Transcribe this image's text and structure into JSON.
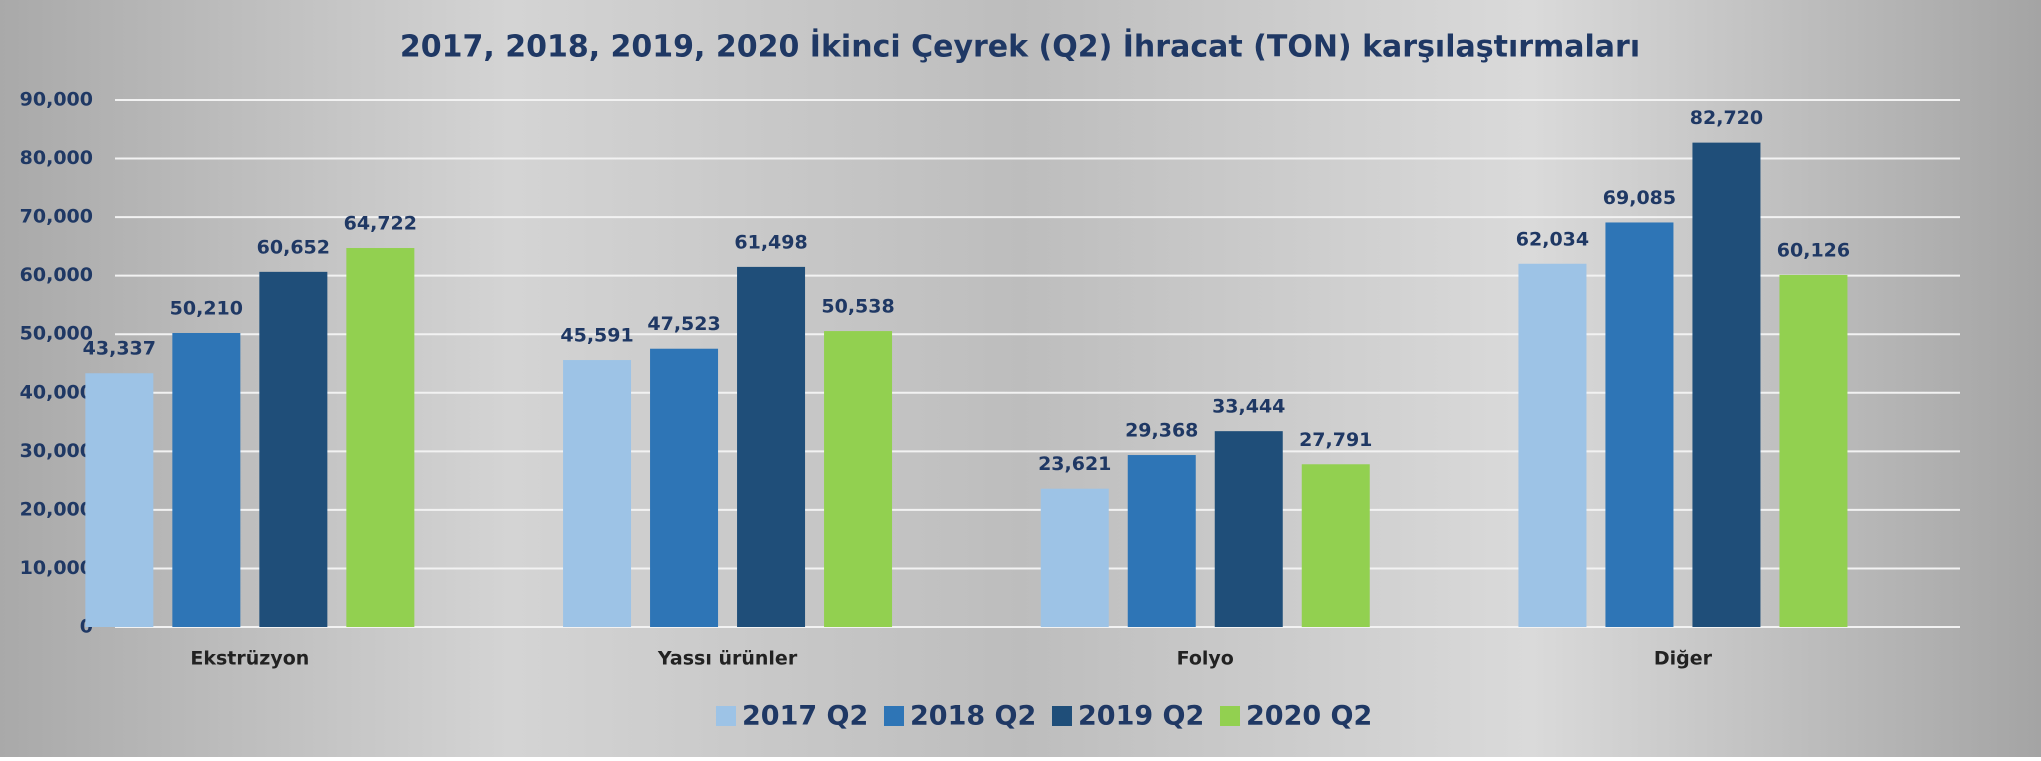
{
  "chart_data": {
    "type": "bar",
    "title": "2017, 2018, 2019, 2020 İkinci Çeyrek (Q2) İhracat (TON) karşılaştırmaları",
    "categories": [
      "Ekstrüzyon",
      "Yassı ürünler",
      "Folyo",
      "Diğer"
    ],
    "series": [
      {
        "name": "2017 Q2",
        "color": "#9dc3e6",
        "values": [
          43337,
          45591,
          23621,
          62034
        ],
        "value_labels": [
          "43,337",
          "45,591",
          "23,621",
          "62,034"
        ]
      },
      {
        "name": "2018 Q2",
        "color": "#2e75b6",
        "values": [
          50210,
          47523,
          29368,
          69085
        ],
        "value_labels": [
          "50,210",
          "47,523",
          "29,368",
          "69,085"
        ]
      },
      {
        "name": "2019 Q2",
        "color": "#1f4e79",
        "values": [
          60652,
          61498,
          33444,
          82720
        ],
        "value_labels": [
          "60,652",
          "61,498",
          "33,444",
          "82,720"
        ]
      },
      {
        "name": "2020 Q2",
        "color": "#92d050",
        "values": [
          64722,
          50538,
          27791,
          60126
        ],
        "value_labels": [
          "64,722",
          "50,538",
          "27,791",
          "60,126"
        ]
      }
    ],
    "ylim": [
      0,
      90000
    ],
    "yticks": [
      0,
      {
        "value": 10000,
        "label": "10,000"
      },
      {
        "value": 20000,
        "label": "20,000"
      },
      {
        "value": 30000,
        "label": "30,000"
      },
      {
        "value": 40000,
        "label": "40,000"
      },
      {
        "value": 50000,
        "label": "50,000"
      },
      {
        "value": 60000,
        "label": "60,000"
      },
      {
        "value": 70000,
        "label": "70,000"
      },
      {
        "value": 80000,
        "label": "80,000"
      },
      {
        "value": 90000,
        "label": "90,000"
      }
    ],
    "grid": true,
    "legend": "bottom"
  }
}
